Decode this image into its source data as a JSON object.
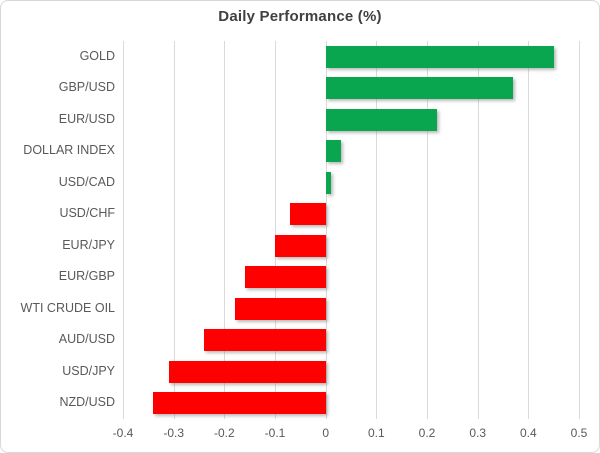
{
  "chart_data": {
    "type": "bar",
    "orientation": "horizontal",
    "title": "Daily Performance (%)",
    "categories": [
      "GOLD",
      "GBP/USD",
      "EUR/USD",
      "DOLLAR INDEX",
      "USD/CAD",
      "USD/CHF",
      "EUR/JPY",
      "EUR/GBP",
      "WTI CRUDE OIL",
      "AUD/USD",
      "USD/JPY",
      "NZD/USD"
    ],
    "values": [
      0.45,
      0.37,
      0.22,
      0.03,
      0.01,
      -0.07,
      -0.1,
      -0.16,
      -0.18,
      -0.24,
      -0.31,
      -0.34
    ],
    "xlabel": "",
    "ylabel": "",
    "xlim": [
      -0.4,
      0.5
    ],
    "xticks": [
      -0.4,
      -0.3,
      -0.2,
      -0.1,
      0,
      0.1,
      0.2,
      0.3,
      0.4,
      0.5
    ],
    "xtick_labels": [
      "-0.4",
      "-0.3",
      "-0.2",
      "-0.1",
      "0",
      "0.1",
      "0.2",
      "0.3",
      "0.4",
      "0.5"
    ],
    "grid": "vertical",
    "legend": "none",
    "colors": {
      "positive": "#0aa64f",
      "negative": "#fe0000",
      "gridline": "#d9d9d9",
      "title_text": "#404040",
      "label_text": "#595959",
      "frame_border": "#d8d8d8",
      "background": "#ffffff"
    }
  }
}
